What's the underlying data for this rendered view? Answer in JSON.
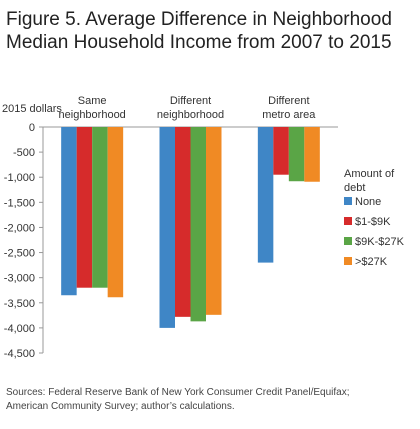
{
  "chart_data": {
    "type": "bar",
    "title_lines": [
      "Figure 5.  Average Difference in Neighborhood",
      "Median Household Income from 2007 to 2015"
    ],
    "ylabel": "2015 dollars",
    "ylim": [
      -4500,
      0
    ],
    "yticks": [
      0,
      -500,
      -1000,
      -1500,
      -2000,
      -2500,
      -3000,
      -3500,
      -4000,
      -4500
    ],
    "ytick_labels": [
      "0",
      "-500",
      "-1,000",
      "-1,500",
      "-2,000",
      "-2,500",
      "-3,000",
      "-3,500",
      "-4,000",
      "-4,500"
    ],
    "categories": [
      {
        "lines": [
          "Same",
          "neighborhood"
        ]
      },
      {
        "lines": [
          "Different",
          "neighborhood"
        ]
      },
      {
        "lines": [
          "Different",
          "metro area"
        ]
      }
    ],
    "legend_title_lines": [
      "Amount of",
      "debt"
    ],
    "legend_position": "right",
    "series": [
      {
        "name": "None",
        "color": "#3f86c6",
        "values": [
          -3350,
          -4000,
          -2700
        ]
      },
      {
        "name": "$1-$9K",
        "color": "#d62b2b",
        "values": [
          -3200,
          -3780,
          -950
        ]
      },
      {
        "name": "$9K-$27K",
        "color": "#5aa546",
        "values": [
          -3200,
          -3870,
          -1080
        ]
      },
      {
        "name": ">$27K",
        "color": "#f08a24",
        "values": [
          -3390,
          -3740,
          -1090
        ]
      }
    ]
  },
  "sources_lines": [
    "Sources: Federal Reserve Bank of New York Consumer Credit Panel/Equifax;",
    "American Community Survey; author’s calculations."
  ]
}
